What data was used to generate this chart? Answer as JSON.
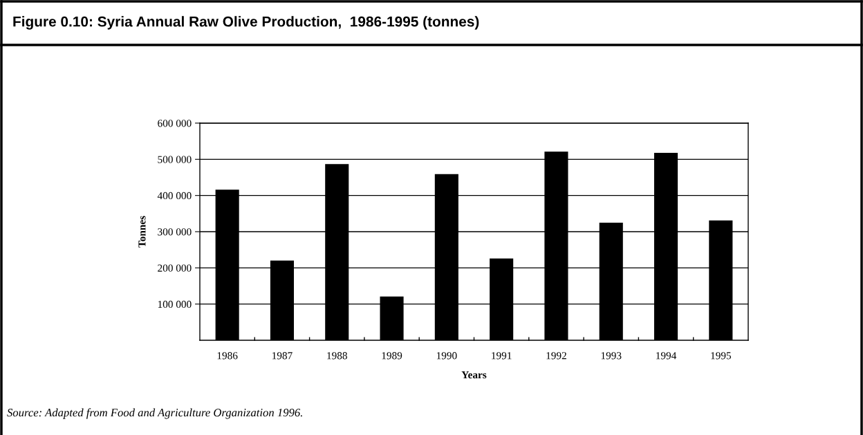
{
  "chart_data": {
    "type": "bar",
    "title": "Figure 0.10: Syria Annual Raw Olive Production,  1986-1995 (tonnes)",
    "xlabel": "Years",
    "ylabel": "Tonnes",
    "categories": [
      "1986",
      "1987",
      "1988",
      "1989",
      "1990",
      "1991",
      "1992",
      "1993",
      "1994",
      "1995"
    ],
    "values": [
      416000,
      220000,
      487000,
      121000,
      459000,
      226000,
      521000,
      325000,
      518000,
      331000
    ],
    "color": "#000000",
    "ylim": [
      0,
      600000
    ],
    "yticks": [
      {
        "value": 100000,
        "label": "100 000"
      },
      {
        "value": 200000,
        "label": "200 000"
      },
      {
        "value": 300000,
        "label": "300 000"
      },
      {
        "value": 400000,
        "label": "400 000"
      },
      {
        "value": 500000,
        "label": "500 000"
      },
      {
        "value": 600000,
        "label": "600 000"
      }
    ],
    "grid": "y",
    "legend": false,
    "annotations": [
      "Source: Adapted from Food and Agriculture Organization 1996."
    ]
  }
}
